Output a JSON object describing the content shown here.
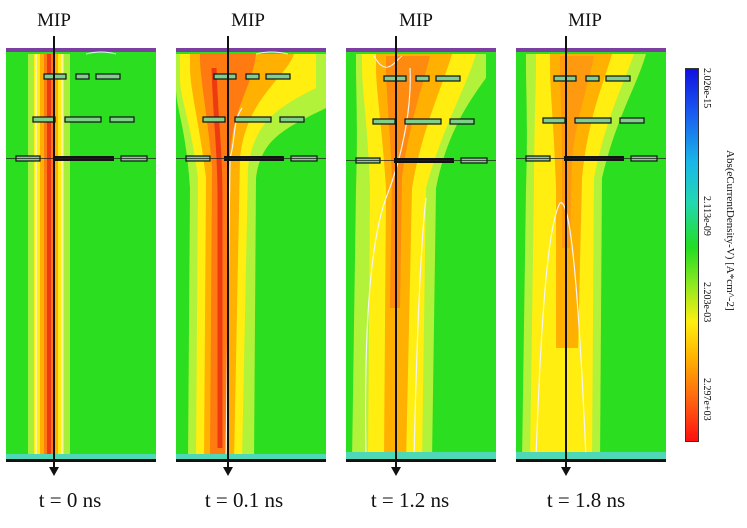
{
  "figure": {
    "panels": [
      {
        "time_label": "t = 0 ns",
        "mip_label": "MIP"
      },
      {
        "time_label": "t = 0.1 ns",
        "mip_label": "MIP"
      },
      {
        "time_label": "t = 1.2 ns",
        "mip_label": "MIP"
      },
      {
        "time_label": "t = 1.8 ns",
        "mip_label": "MIP"
      }
    ],
    "colorbar": {
      "title": "Abs(eCurrentDensity-V) [A*cm^-2]",
      "ticks": [
        "2.026e-15",
        "2.113e-09",
        "2.203e-03",
        "2.297e+03"
      ]
    },
    "colors": {
      "background_field": "#22dd22",
      "track_core": "#ee3311",
      "track_halo": "#ffee00",
      "scale_low": "#1111ee",
      "scale_high": "#ff1111"
    }
  }
}
